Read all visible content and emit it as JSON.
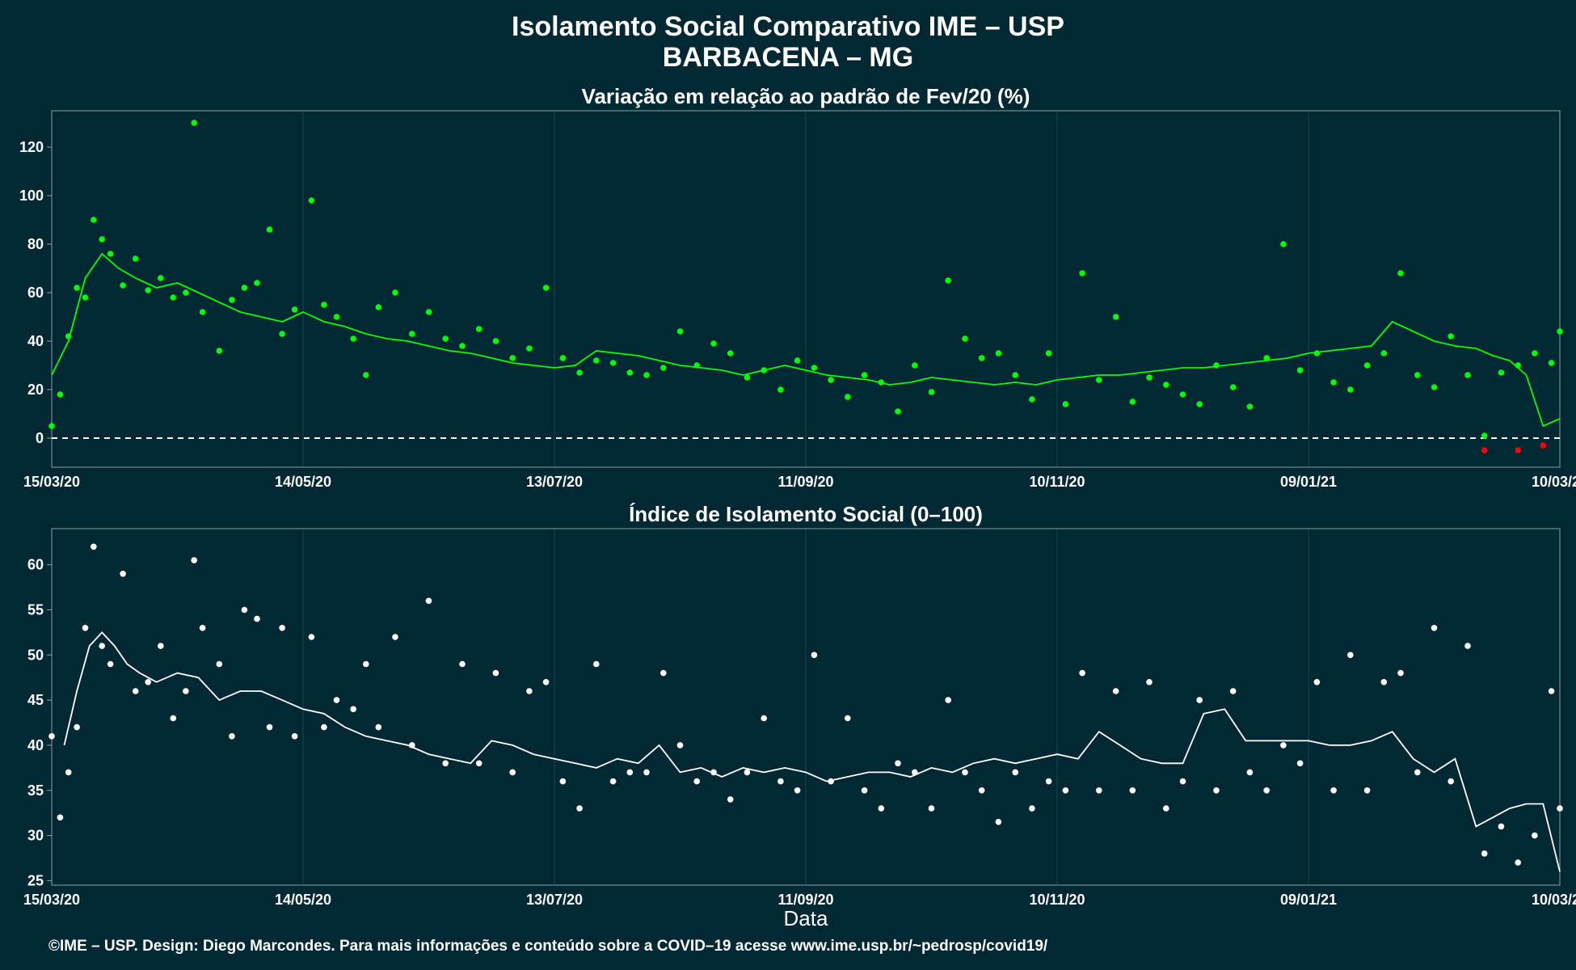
{
  "title_line1": "Isolamento Social Comparativo IME – USP",
  "title_line2": "BARBACENA – MG",
  "footer": "©IME – USP. Design: Diego Marcondes. Para mais informações e conteúdo sobre a COVID–19 acesse www.ime.usp.br/~pedrosp/covid19/",
  "colors": {
    "background": "#022833",
    "panel_border": "#8ba0a8",
    "grid": "#1b4450",
    "variation_points": "#00ff00",
    "variation_negative_points": "#ff0000",
    "variation_line": "#00ff00",
    "index_points": "#ffffff",
    "index_line": "#ffffff"
  },
  "chart_data": [
    {
      "type": "scatter",
      "title": "Variação em relação ao padrão de Fev/20 (%)",
      "xlabel": "",
      "ylabel": "",
      "x_start": "15/03/20",
      "x_end": "10/03/21",
      "x_tick_labels": [
        "15/03/20",
        "14/05/20",
        "13/07/20",
        "11/09/20",
        "10/11/20",
        "09/01/21",
        "10/03/21"
      ],
      "y_ticks": [
        0,
        20,
        40,
        60,
        80,
        100,
        120
      ],
      "ylim": [
        -12,
        135
      ],
      "reference_line": 0,
      "grid": true,
      "series": [
        {
          "kind": "points",
          "x": [
            0,
            2,
            4,
            6,
            8,
            10,
            12,
            14,
            17,
            20,
            23,
            26,
            29,
            32,
            34,
            36,
            40,
            43,
            46,
            49,
            52,
            55,
            58,
            62,
            65,
            68,
            72,
            75,
            78,
            82,
            86,
            90,
            94,
            98,
            102,
            106,
            110,
            114,
            118,
            122,
            126,
            130,
            134,
            138,
            142,
            146,
            150,
            154,
            158,
            162,
            166,
            170,
            174,
            178,
            182,
            186,
            190,
            194,
            198,
            202,
            206,
            210,
            214,
            218,
            222,
            226,
            230,
            234,
            238,
            242,
            246,
            250,
            254,
            258,
            262,
            266,
            270,
            274,
            278,
            282,
            286,
            290,
            294,
            298,
            302,
            306,
            310,
            314,
            318,
            322,
            326,
            330,
            334,
            338,
            342,
            346,
            350,
            354,
            358,
            360
          ],
          "y": [
            5,
            18,
            42,
            62,
            58,
            90,
            82,
            76,
            63,
            74,
            61,
            66,
            58,
            60,
            130,
            52,
            36,
            57,
            62,
            64,
            86,
            43,
            53,
            98,
            55,
            50,
            41,
            26,
            54,
            60,
            43,
            52,
            41,
            38,
            45,
            40,
            33,
            37,
            62,
            33,
            27,
            32,
            31,
            27,
            26,
            29,
            44,
            30,
            39,
            35,
            25,
            28,
            20,
            32,
            29,
            24,
            17,
            26,
            23,
            11,
            30,
            19,
            65,
            41,
            33,
            35,
            26,
            16,
            35,
            14,
            68,
            24,
            50,
            15,
            25,
            22,
            18,
            14,
            30,
            21,
            13,
            33,
            80,
            28,
            35,
            23,
            20,
            30,
            35,
            68,
            26,
            21,
            42,
            26,
            1,
            27,
            30,
            35,
            31,
            44
          ],
          "color": "#00ff00"
        },
        {
          "kind": "points",
          "x": [
            342,
            350,
            356
          ],
          "y": [
            -5,
            -5,
            -3
          ],
          "color": "#ff0000"
        },
        {
          "kind": "line",
          "x": [
            0,
            4,
            8,
            12,
            16,
            20,
            25,
            30,
            35,
            40,
            45,
            50,
            55,
            60,
            65,
            70,
            75,
            80,
            85,
            90,
            95,
            100,
            105,
            110,
            115,
            120,
            125,
            130,
            135,
            140,
            145,
            150,
            155,
            160,
            165,
            170,
            175,
            180,
            185,
            190,
            195,
            200,
            205,
            210,
            215,
            220,
            225,
            230,
            235,
            240,
            245,
            250,
            255,
            260,
            265,
            270,
            275,
            280,
            285,
            290,
            295,
            300,
            305,
            310,
            315,
            320,
            325,
            330,
            335,
            340,
            344,
            348,
            352,
            356,
            360
          ],
          "y": [
            26,
            40,
            66,
            76,
            70,
            66,
            62,
            64,
            60,
            56,
            52,
            50,
            48,
            52,
            48,
            46,
            43,
            41,
            40,
            38,
            36,
            35,
            33,
            31,
            30,
            29,
            30,
            36,
            35,
            34,
            32,
            30,
            29,
            28,
            26,
            28,
            30,
            28,
            26,
            25,
            24,
            22,
            23,
            25,
            24,
            23,
            22,
            23,
            22,
            24,
            25,
            26,
            26,
            27,
            28,
            29,
            29,
            30,
            31,
            32,
            33,
            35,
            36,
            37,
            38,
            48,
            44,
            40,
            38,
            37,
            34,
            32,
            26,
            5,
            8
          ],
          "color": "#00ff00"
        }
      ]
    },
    {
      "type": "scatter",
      "title": "Índice de Isolamento Social (0–100)",
      "xlabel": "Data",
      "ylabel": "",
      "x_start": "15/03/20",
      "x_end": "10/03/21",
      "x_tick_labels": [
        "15/03/20",
        "14/05/20",
        "13/07/20",
        "11/09/20",
        "10/11/20",
        "09/01/21",
        "10/03/21"
      ],
      "y_ticks": [
        25,
        30,
        35,
        40,
        45,
        50,
        55,
        60
      ],
      "ylim": [
        24.5,
        64
      ],
      "grid": true,
      "series": [
        {
          "kind": "points",
          "x": [
            0,
            2,
            4,
            6,
            8,
            10,
            12,
            14,
            17,
            20,
            23,
            26,
            29,
            32,
            34,
            36,
            40,
            43,
            46,
            49,
            52,
            55,
            58,
            62,
            65,
            68,
            72,
            75,
            78,
            82,
            86,
            90,
            94,
            98,
            102,
            106,
            110,
            114,
            118,
            122,
            126,
            130,
            134,
            138,
            142,
            146,
            150,
            154,
            158,
            162,
            166,
            170,
            174,
            178,
            182,
            186,
            190,
            194,
            198,
            202,
            206,
            210,
            214,
            218,
            222,
            226,
            230,
            234,
            238,
            242,
            246,
            250,
            254,
            258,
            262,
            266,
            270,
            274,
            278,
            282,
            286,
            290,
            294,
            298,
            302,
            306,
            310,
            314,
            318,
            322,
            326,
            330,
            334,
            338,
            342,
            346,
            350,
            354,
            358,
            360
          ],
          "y": [
            41,
            32,
            37,
            42,
            53,
            62,
            51,
            49,
            59,
            46,
            47,
            51,
            43,
            46,
            60.5,
            53,
            49,
            41,
            55,
            54,
            42,
            53,
            41,
            52,
            42,
            45,
            44,
            49,
            42,
            52,
            40,
            56,
            38,
            49,
            38,
            48,
            37,
            46,
            47,
            36,
            33,
            49,
            36,
            37,
            37,
            48,
            40,
            36,
            37,
            34,
            37,
            43,
            36,
            35,
            50,
            36,
            43,
            35,
            33,
            38,
            37,
            33,
            45,
            37,
            35,
            31.5,
            37,
            33,
            36,
            35,
            48,
            35,
            46,
            35,
            47,
            33,
            36,
            45,
            35,
            46,
            37,
            35,
            40,
            38,
            47,
            35,
            50,
            35,
            47,
            48,
            37,
            53,
            36,
            51,
            28,
            31,
            27,
            30,
            46,
            33
          ],
          "color": "#ffffff"
        },
        {
          "kind": "line",
          "x": [
            3,
            6,
            9,
            12,
            15,
            18,
            21,
            25,
            30,
            35,
            40,
            45,
            50,
            55,
            60,
            65,
            70,
            75,
            80,
            85,
            90,
            95,
            100,
            105,
            110,
            115,
            120,
            125,
            130,
            135,
            140,
            145,
            150,
            155,
            160,
            165,
            170,
            175,
            180,
            185,
            190,
            195,
            200,
            205,
            210,
            215,
            220,
            225,
            230,
            235,
            240,
            245,
            250,
            255,
            260,
            265,
            270,
            275,
            280,
            285,
            290,
            295,
            300,
            305,
            310,
            315,
            320,
            325,
            330,
            335,
            340,
            344,
            348,
            352,
            356,
            360
          ],
          "y": [
            40,
            46,
            51,
            52.5,
            51,
            49,
            48,
            47,
            48,
            47.5,
            45,
            46,
            46,
            45,
            44,
            43.5,
            42,
            41,
            40.5,
            40,
            39,
            38.5,
            38,
            40.5,
            40,
            39,
            38.5,
            38,
            37.5,
            38.5,
            38,
            40,
            37,
            37.5,
            36.5,
            37.5,
            37,
            37.5,
            37,
            36,
            36.5,
            37,
            37,
            36.5,
            37.5,
            37,
            38,
            38.5,
            38,
            38.5,
            39,
            38.5,
            41.5,
            40,
            38.5,
            38,
            38,
            43.5,
            44,
            40.5,
            40.5,
            40.5,
            40.5,
            40,
            40,
            40.5,
            41.5,
            38.5,
            37,
            38.5,
            31,
            32,
            33,
            33.5,
            33.5,
            26
          ]
        }
      ]
    }
  ]
}
